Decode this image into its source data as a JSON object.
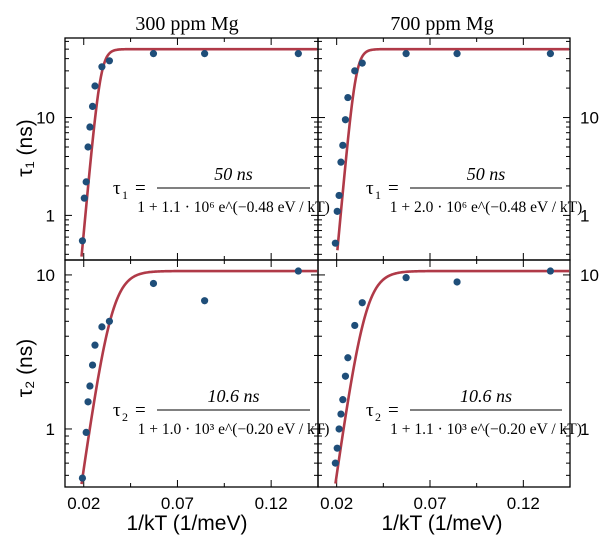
{
  "colors": {
    "curve": "#b03a48",
    "points": "#1f4e79",
    "frame": "#000000"
  },
  "columns": [
    {
      "title": "300 ppm Mg"
    },
    {
      "title": "700 ppm Mg"
    }
  ],
  "y_axis_titles": {
    "top": "τ₁ (ns)",
    "bottom": "τ₂ (ns)"
  },
  "x_axis_title": "1/kT (1/meV)",
  "chart_data": [
    {
      "type": "scatter",
      "panel": "tau1-300ppm",
      "y_scale": "log",
      "xlim": [
        0.01,
        0.145
      ],
      "ylim": [
        0.35,
        65
      ],
      "xticks": [
        "0.02",
        "0.07",
        "0.12"
      ],
      "yticks": [
        "1",
        "10"
      ],
      "points": {
        "x": [
          0.0193,
          0.0203,
          0.0213,
          0.0223,
          0.0233,
          0.0247,
          0.026,
          0.0297,
          0.0337,
          0.0572,
          0.0845,
          0.1345
        ],
        "y": [
          0.55,
          1.5,
          2.2,
          5,
          8,
          13,
          21,
          33,
          38,
          45,
          45,
          45
        ]
      },
      "fit": {
        "A": 50,
        "C": 1100000.0,
        "Ea": 0.48
      },
      "equation": {
        "lhs": "τ",
        "sub": "1",
        "numerator": "50 ns",
        "denominator": "1 + 1.1 · 10⁶ e^(−0.48 eV / kT)"
      }
    },
    {
      "type": "scatter",
      "panel": "tau1-700ppm",
      "y_scale": "log",
      "xlim": [
        0.01,
        0.145
      ],
      "ylim": [
        0.35,
        65
      ],
      "xticks": [
        "0.02",
        "0.07",
        "0.12"
      ],
      "yticks": [
        "1",
        "10"
      ],
      "points": {
        "x": [
          0.0193,
          0.0203,
          0.0213,
          0.0223,
          0.0233,
          0.0247,
          0.026,
          0.0297,
          0.0337,
          0.0572,
          0.0845,
          0.1345
        ],
        "y": [
          0.52,
          1.1,
          1.6,
          3.5,
          5.2,
          9.5,
          16,
          30,
          36,
          45,
          45,
          45
        ]
      },
      "fit": {
        "A": 50,
        "C": 2000000.0,
        "Ea": 0.48
      },
      "equation": {
        "lhs": "τ",
        "sub": "1",
        "numerator": "50 ns",
        "denominator": "1 + 2.0 · 10⁶ e^(−0.48 eV / kT)"
      }
    },
    {
      "type": "scatter",
      "panel": "tau2-300ppm",
      "y_scale": "log",
      "xlim": [
        0.01,
        0.145
      ],
      "ylim": [
        0.42,
        12.5
      ],
      "xticks": [
        "0.02",
        "0.07",
        "0.12"
      ],
      "yticks": [
        "1",
        "10"
      ],
      "points": {
        "x": [
          0.0193,
          0.0213,
          0.0223,
          0.0233,
          0.0247,
          0.026,
          0.0297,
          0.0337,
          0.0572,
          0.0845,
          0.1345
        ],
        "y": [
          0.48,
          0.95,
          1.5,
          1.9,
          2.6,
          3.5,
          4.6,
          5.0,
          8.8,
          6.8,
          10.6
        ]
      },
      "fit": {
        "A": 10.6,
        "C": 1000.0,
        "Ea": 0.2
      },
      "equation": {
        "lhs": "τ",
        "sub": "2",
        "numerator": "10.6 ns",
        "denominator": "1 + 1.0 · 10³ e^(−0.20 eV / kT)"
      }
    },
    {
      "type": "scatter",
      "panel": "tau2-700ppm",
      "y_scale": "log",
      "xlim": [
        0.01,
        0.145
      ],
      "ylim": [
        0.42,
        12.5
      ],
      "xticks": [
        "0.02",
        "0.07",
        "0.12"
      ],
      "yticks": [
        "1",
        "10"
      ],
      "points": {
        "x": [
          0.0193,
          0.0203,
          0.0213,
          0.0223,
          0.0233,
          0.0247,
          0.026,
          0.0297,
          0.0337,
          0.0572,
          0.0845,
          0.1345
        ],
        "y": [
          0.6,
          0.75,
          1.0,
          1.25,
          1.55,
          2.2,
          2.9,
          4.7,
          6.6,
          9.6,
          9.0,
          10.6
        ]
      },
      "fit": {
        "A": 10.6,
        "C": 1100.0,
        "Ea": 0.2
      },
      "equation": {
        "lhs": "τ",
        "sub": "2",
        "numerator": "10.6 ns",
        "denominator": "1 + 1.1 · 10³ e^(−0.20 eV / kT)"
      }
    }
  ]
}
